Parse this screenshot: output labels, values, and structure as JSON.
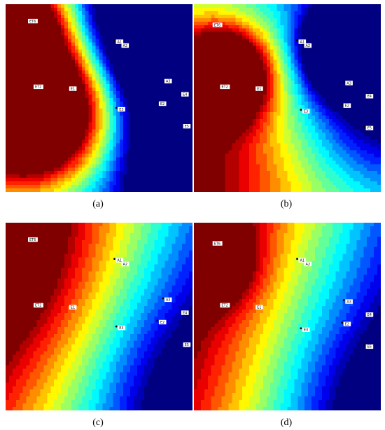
{
  "chart_data": [
    {
      "type": "heatmap",
      "caption": "(a)",
      "colormap": "jet",
      "x_range": [
        0,
        1
      ],
      "y_range": [
        0,
        1
      ],
      "hotspots": [
        {
          "x": 0.15,
          "y": 0.55,
          "amp": 1.6,
          "sigma": 0.28
        },
        {
          "x": 0.05,
          "y": 0.08,
          "amp": 0.9,
          "sigma": 0.18
        }
      ],
      "coldspots": [
        {
          "x": 0.95,
          "y": 0.12,
          "amp": 1.4,
          "sigma": 0.3
        },
        {
          "x": 0.95,
          "y": 0.85,
          "amp": 0.5,
          "sigma": 0.2
        }
      ],
      "gradient": {
        "ax": -0.5,
        "ay": -0.1,
        "c": 0.45
      },
      "points": [
        {
          "x": 0.12,
          "y": 0.09,
          "label": "ET6"
        },
        {
          "x": 0.59,
          "y": 0.2,
          "label": "A1",
          "marker": true
        },
        {
          "x": 0.62,
          "y": 0.22,
          "label": "A2"
        },
        {
          "x": 0.15,
          "y": 0.44,
          "label": "ET2"
        },
        {
          "x": 0.34,
          "y": 0.45,
          "label": "E1"
        },
        {
          "x": 0.85,
          "y": 0.41,
          "label": "A3"
        },
        {
          "x": 0.82,
          "y": 0.53,
          "label": "E2",
          "marker": true
        },
        {
          "x": 0.6,
          "y": 0.56,
          "label": "E3",
          "marker": true
        },
        {
          "x": 0.94,
          "y": 0.48,
          "label": "E4"
        },
        {
          "x": 0.95,
          "y": 0.65,
          "label": "E5"
        }
      ]
    },
    {
      "type": "heatmap",
      "caption": "(b)",
      "colormap": "jet",
      "x_range": [
        0,
        1
      ],
      "y_range": [
        0,
        1
      ],
      "hotspots": [
        {
          "x": 0.15,
          "y": 0.38,
          "amp": 1.3,
          "sigma": 0.17
        },
        {
          "x": 0.1,
          "y": 0.9,
          "amp": 0.3,
          "sigma": 0.3
        }
      ],
      "coldspots": [
        {
          "x": 0.85,
          "y": 0.22,
          "amp": 1.6,
          "sigma": 0.16
        },
        {
          "x": 1.0,
          "y": 0.55,
          "amp": 0.4,
          "sigma": 0.25
        }
      ],
      "gradient": {
        "ax": -0.35,
        "ay": 0.25,
        "c": 0.5
      },
      "points": [
        {
          "x": 0.1,
          "y": 0.11,
          "label": "ET6"
        },
        {
          "x": 0.56,
          "y": 0.2,
          "label": "A1",
          "marker": true
        },
        {
          "x": 0.59,
          "y": 0.22,
          "label": "A2"
        },
        {
          "x": 0.14,
          "y": 0.44,
          "label": "ET2"
        },
        {
          "x": 0.33,
          "y": 0.45,
          "label": "E1"
        },
        {
          "x": 0.81,
          "y": 0.42,
          "label": "A3",
          "marker": true
        },
        {
          "x": 0.8,
          "y": 0.54,
          "label": "E2",
          "marker": true
        },
        {
          "x": 0.58,
          "y": 0.57,
          "label": "E3",
          "marker": true
        },
        {
          "x": 0.92,
          "y": 0.49,
          "label": "E4"
        },
        {
          "x": 0.92,
          "y": 0.66,
          "label": "E5",
          "marker": true
        }
      ]
    },
    {
      "type": "heatmap",
      "caption": "(c)",
      "colormap": "jet",
      "x_range": [
        0,
        1
      ],
      "y_range": [
        0,
        1
      ],
      "hotspots": [
        {
          "x": 0.0,
          "y": 0.2,
          "amp": 0.25,
          "sigma": 0.35
        }
      ],
      "coldspots": [
        {
          "x": 1.0,
          "y": 0.9,
          "amp": 0.2,
          "sigma": 0.3
        }
      ],
      "gradient": {
        "ax": -0.95,
        "ay": -0.35,
        "c": 1.18
      },
      "points": [
        {
          "x": 0.12,
          "y": 0.09,
          "label": "ET6"
        },
        {
          "x": 0.59,
          "y": 0.2,
          "label": "A1",
          "marker": true
        },
        {
          "x": 0.62,
          "y": 0.22,
          "label": "A2"
        },
        {
          "x": 0.15,
          "y": 0.44,
          "label": "ET2"
        },
        {
          "x": 0.34,
          "y": 0.45,
          "label": "E1"
        },
        {
          "x": 0.85,
          "y": 0.41,
          "label": "A3",
          "marker": true
        },
        {
          "x": 0.82,
          "y": 0.53,
          "label": "E2",
          "marker": true
        },
        {
          "x": 0.6,
          "y": 0.56,
          "label": "E3",
          "marker": true
        },
        {
          "x": 0.94,
          "y": 0.48,
          "label": "E4"
        },
        {
          "x": 0.95,
          "y": 0.65,
          "label": "E5"
        }
      ]
    },
    {
      "type": "heatmap",
      "caption": "(d)",
      "colormap": "jet",
      "x_range": [
        0,
        1
      ],
      "y_range": [
        0,
        1
      ],
      "hotspots": [
        {
          "x": 0.12,
          "y": 0.22,
          "amp": 0.35,
          "sigma": 0.15
        },
        {
          "x": 0.0,
          "y": 0.1,
          "amp": 0.2,
          "sigma": 0.2
        }
      ],
      "coldspots": [
        {
          "x": 1.0,
          "y": 0.95,
          "amp": 0.2,
          "sigma": 0.3
        }
      ],
      "gradient": {
        "ax": -1.0,
        "ay": -0.3,
        "c": 1.2
      },
      "points": [
        {
          "x": 0.1,
          "y": 0.11,
          "label": "ET6"
        },
        {
          "x": 0.56,
          "y": 0.2,
          "label": "A1",
          "marker": true
        },
        {
          "x": 0.59,
          "y": 0.22,
          "label": "A2"
        },
        {
          "x": 0.14,
          "y": 0.44,
          "label": "ET2"
        },
        {
          "x": 0.33,
          "y": 0.45,
          "label": "E1"
        },
        {
          "x": 0.81,
          "y": 0.42,
          "label": "A3",
          "marker": true
        },
        {
          "x": 0.8,
          "y": 0.54,
          "label": "E2",
          "marker": true
        },
        {
          "x": 0.58,
          "y": 0.57,
          "label": "E3",
          "marker": true
        },
        {
          "x": 0.92,
          "y": 0.49,
          "label": "E4"
        },
        {
          "x": 0.92,
          "y": 0.66,
          "label": "E5",
          "marker": true
        }
      ]
    }
  ]
}
